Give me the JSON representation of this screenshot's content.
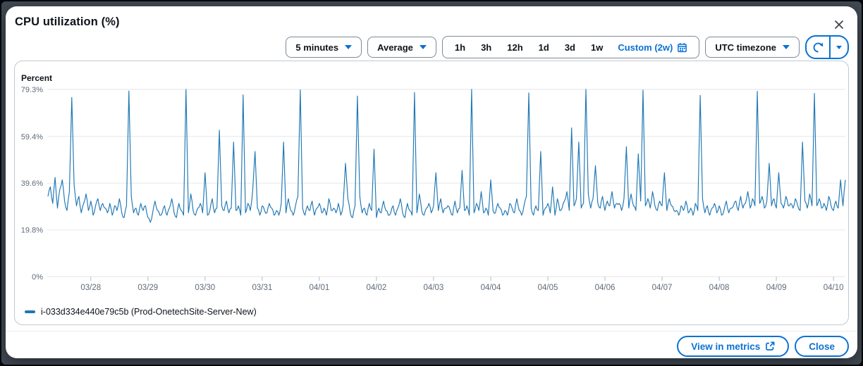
{
  "modal": {
    "title": "CPU utilization (%)"
  },
  "controls": {
    "period_label": "5 minutes",
    "statistic_label": "Average",
    "range_options": [
      "1h",
      "3h",
      "12h",
      "1d",
      "3d",
      "1w"
    ],
    "custom_range_label": "Custom (2w)",
    "timezone_label": "UTC timezone",
    "accent_color": "#0972d3"
  },
  "footer": {
    "view_in_metrics_label": "View in metrics",
    "close_label": "Close"
  },
  "chart_data": {
    "type": "line",
    "title": "CPU utilization (%)",
    "ylabel": "Percent",
    "unit": "%",
    "ylim": [
      0,
      79.3
    ],
    "y_tick_values": [
      79.3,
      59.4,
      39.6,
      19.8,
      0
    ],
    "y_tick_labels": [
      "79.3%",
      "59.4%",
      "39.6%",
      "19.8%",
      "0%"
    ],
    "x_tick_labels": [
      "03/28",
      "03/29",
      "03/30",
      "03/31",
      "04/01",
      "04/02",
      "04/03",
      "04/04",
      "04/05",
      "04/06",
      "04/07",
      "04/08",
      "04/09",
      "04/10"
    ],
    "x_sampling": "hourly_approximation_of_5min_data",
    "hours_before_first_tick": 18,
    "hours_per_tick": 24,
    "grid": true,
    "legend_position": "bottom-left",
    "series": [
      {
        "name": "i-033d334e440e79c5b (Prod-OnetechSite-Server-New)",
        "color": "#1f77b4",
        "period": "5 minutes",
        "statistic": "Average",
        "values": [
          34,
          38,
          31,
          42,
          29,
          37,
          41,
          32,
          28,
          36,
          75.9,
          39,
          30,
          34,
          27,
          31,
          35,
          28,
          32,
          26,
          30,
          33,
          28,
          31,
          29,
          27,
          31,
          26,
          30,
          28,
          33,
          27,
          25,
          30,
          78.6,
          34,
          27,
          29,
          26,
          31,
          28,
          30,
          25,
          23,
          27,
          32,
          28,
          26,
          27,
          30,
          26,
          29,
          33,
          27,
          25,
          31,
          28,
          26,
          79.3,
          27,
          35,
          28,
          26,
          29,
          31,
          27,
          44,
          26,
          28,
          33,
          27,
          29,
          62,
          30,
          28,
          32,
          27,
          29,
          57,
          28,
          30,
          26,
          77,
          27,
          31,
          28,
          36,
          53,
          29,
          26,
          30,
          28,
          27,
          31,
          29,
          26,
          28,
          26,
          31,
          57,
          27,
          33,
          28,
          26,
          30,
          34,
          79.1,
          29,
          26,
          30,
          28,
          32,
          26,
          29,
          31,
          27,
          29,
          26,
          33,
          28,
          29,
          27,
          31,
          26,
          30,
          48,
          33,
          27,
          25,
          30,
          76.5,
          34,
          27,
          29,
          26,
          31,
          28,
          54,
          25,
          29,
          27,
          32,
          28,
          26,
          27,
          30,
          26,
          29,
          33,
          27,
          25,
          31,
          28,
          26,
          78,
          27,
          35,
          28,
          26,
          29,
          31,
          27,
          30,
          44,
          28,
          33,
          27,
          29,
          30,
          28,
          26,
          32,
          27,
          29,
          45,
          28,
          30,
          26,
          79.3,
          27,
          31,
          28,
          36,
          27,
          29,
          26,
          41,
          28,
          27,
          31,
          29,
          26,
          28,
          26,
          31,
          29,
          27,
          33,
          28,
          26,
          30,
          34,
          77.8,
          29,
          26,
          30,
          28,
          53,
          26,
          29,
          31,
          27,
          38,
          26,
          33,
          28,
          29,
          32,
          36,
          28,
          63,
          30,
          33,
          57,
          29,
          31,
          79.3,
          35,
          29,
          33,
          47,
          31,
          29,
          34,
          28,
          32,
          30,
          36,
          29,
          31,
          31,
          28,
          33,
          55,
          29,
          35,
          30,
          28,
          52,
          32,
          79,
          30,
          33,
          29,
          36,
          30,
          28,
          32,
          30,
          44,
          28,
          33,
          30,
          28,
          28,
          26,
          30,
          28,
          32,
          27,
          29,
          26,
          31,
          28,
          76.8,
          33,
          27,
          30,
          26,
          29,
          31,
          27,
          30,
          26,
          28,
          32,
          27,
          29,
          30,
          32,
          28,
          34,
          29,
          31,
          36,
          29,
          33,
          30,
          78.5,
          31,
          34,
          29,
          32,
          48,
          30,
          33,
          29,
          44,
          31,
          29,
          34,
          30,
          31,
          29,
          33,
          30,
          28,
          57,
          32,
          29,
          35,
          30,
          77.6,
          30,
          33,
          29,
          31,
          28,
          34,
          30,
          28,
          32,
          29,
          41,
          30,
          41
        ]
      }
    ]
  }
}
